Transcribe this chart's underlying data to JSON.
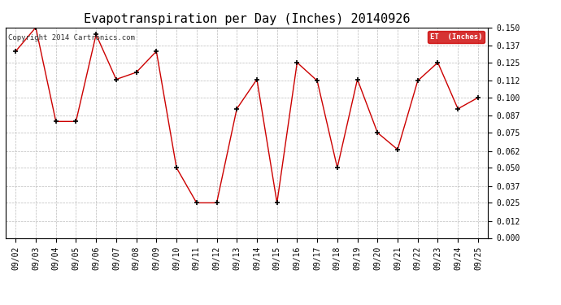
{
  "title": "Evapotranspiration per Day (Inches) 20140926",
  "copyright": "Copyright 2014 Cartronics.com",
  "legend_label": "ET  (Inches)",
  "x_labels": [
    "09/02",
    "09/03",
    "09/04",
    "09/05",
    "09/06",
    "09/07",
    "09/08",
    "09/09",
    "09/10",
    "09/11",
    "09/12",
    "09/13",
    "09/14",
    "09/15",
    "09/16",
    "09/17",
    "09/18",
    "09/19",
    "09/20",
    "09/21",
    "09/22",
    "09/23",
    "09/24",
    "09/25"
  ],
  "y_values": [
    0.133,
    0.15,
    0.083,
    0.083,
    0.145,
    0.113,
    0.118,
    0.133,
    0.05,
    0.025,
    0.025,
    0.092,
    0.113,
    0.025,
    0.125,
    0.112,
    0.05,
    0.113,
    0.075,
    0.063,
    0.112,
    0.125,
    0.092,
    0.1
  ],
  "ylim": [
    0.0,
    0.15
  ],
  "y_ticks": [
    0.0,
    0.012,
    0.025,
    0.037,
    0.05,
    0.062,
    0.075,
    0.087,
    0.1,
    0.112,
    0.125,
    0.137,
    0.15
  ],
  "line_color": "#cc0000",
  "marker_color": "#000000",
  "bg_color": "#ffffff",
  "grid_color": "#bbbbbb",
  "legend_bg": "#cc0000",
  "legend_text_color": "#ffffff",
  "title_fontsize": 11,
  "tick_fontsize": 7,
  "copyright_fontsize": 6.5
}
